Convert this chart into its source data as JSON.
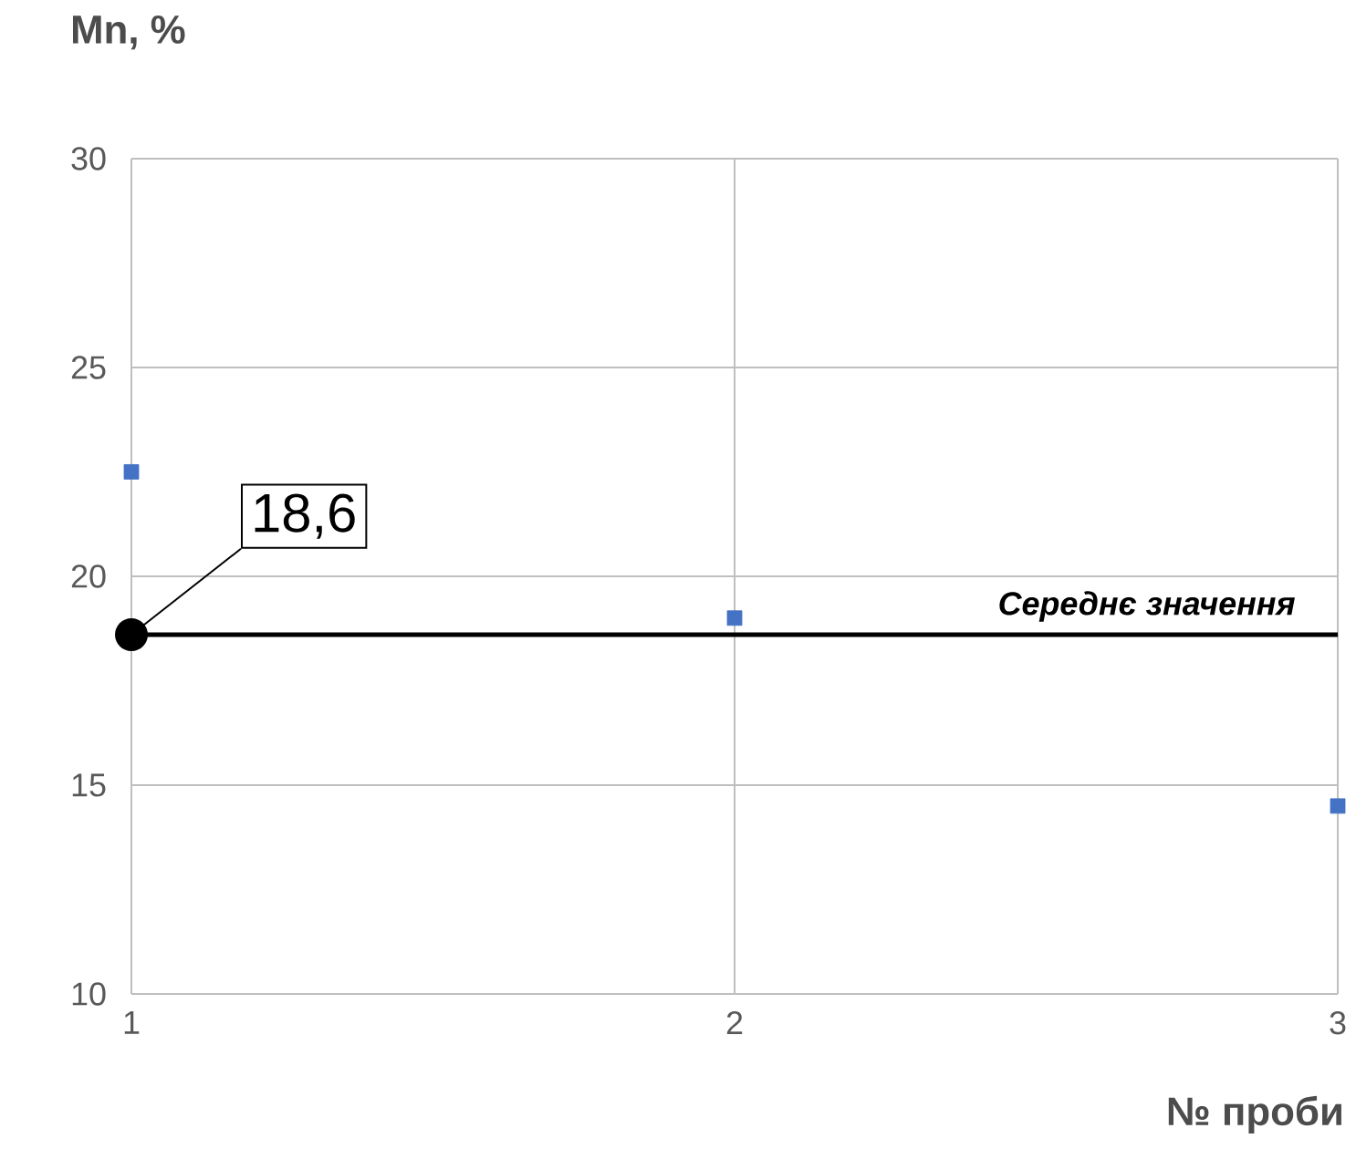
{
  "chart_data": {
    "type": "scatter",
    "xlabel": "№ проби",
    "ylabel": "Mn, %",
    "x": [
      1,
      2,
      3
    ],
    "series": [
      {
        "color": "#4472c4",
        "values": [
          22.5,
          19.0,
          14.5
        ]
      }
    ],
    "xlim": [
      1,
      3
    ],
    "xticks": [
      1,
      2,
      3
    ],
    "ylim": [
      10,
      30
    ],
    "yticks": [
      10,
      15,
      20,
      25,
      30
    ],
    "grid": true,
    "marker": "square",
    "ref_lines": [
      {
        "axis": "y",
        "value": 18.6,
        "label": "Середнє значення",
        "color": "#000000"
      }
    ],
    "annotations": [
      {
        "text": "18,6",
        "x": 1,
        "y": 18.6
      }
    ]
  }
}
